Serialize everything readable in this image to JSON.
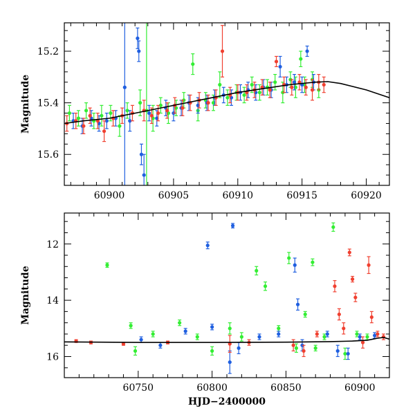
{
  "chart_data": [
    {
      "id": "top",
      "type": "scatter",
      "title": "",
      "xlabel": "",
      "ylabel": "Magnitude",
      "xlim": [
        60896.5,
        60921.8
      ],
      "ylim": [
        15.72,
        15.09
      ],
      "y_inverted": true,
      "xticks_major": [
        60900,
        60905,
        60910,
        60915,
        60920
      ],
      "xtick_labels": [
        "60900",
        "60905",
        "60910",
        "60915",
        "60920"
      ],
      "yticks_major": [
        15.2,
        15.4,
        15.6
      ],
      "ytick_labels": [
        "15.2",
        "15.4",
        "15.6"
      ],
      "grid": false,
      "legend": "none",
      "series_colors": {
        "green": "#33ee33",
        "blue": "#1f5fe0",
        "red": "#f04030",
        "model": "#000000"
      },
      "model_line": {
        "x": [
          60896.5,
          60898,
          60900,
          60902,
          60904,
          60906,
          60908,
          60910,
          60912,
          60914,
          60916,
          60917,
          60918,
          60920,
          60921.8
        ],
        "y": [
          15.48,
          15.47,
          15.46,
          15.44,
          15.42,
          15.4,
          15.38,
          15.36,
          15.345,
          15.33,
          15.32,
          15.318,
          15.325,
          15.35,
          15.38
        ]
      },
      "series": [
        {
          "color": "green",
          "points": [
            [
              60896.9,
              15.44,
              0.03
            ],
            [
              60897.6,
              15.46,
              0.03
            ],
            [
              60898.2,
              15.43,
              0.03
            ],
            [
              60898.8,
              15.47,
              0.03
            ],
            [
              60899.4,
              15.45,
              0.04
            ],
            [
              60900.1,
              15.44,
              0.03
            ],
            [
              60900.8,
              15.49,
              0.04
            ],
            [
              60901.4,
              15.43,
              0.03
            ],
            [
              60902.4,
              15.4,
              0.05
            ],
            [
              60902.9,
              15.43,
              0.45
            ],
            [
              60903.4,
              15.46,
              0.05
            ],
            [
              60904.0,
              15.41,
              0.03
            ],
            [
              60904.6,
              15.44,
              0.04
            ],
            [
              60905.2,
              15.42,
              0.03
            ],
            [
              60905.8,
              15.39,
              0.03
            ],
            [
              60906.5,
              15.25,
              0.04
            ],
            [
              60906.9,
              15.43,
              0.04
            ],
            [
              60907.5,
              15.39,
              0.03
            ],
            [
              60908.1,
              15.4,
              0.03
            ],
            [
              60908.6,
              15.33,
              0.05
            ],
            [
              60909.2,
              15.38,
              0.03
            ],
            [
              60909.9,
              15.36,
              0.03
            ],
            [
              60910.5,
              15.37,
              0.03
            ],
            [
              60911.1,
              15.33,
              0.03
            ],
            [
              60911.7,
              15.36,
              0.03
            ],
            [
              60912.3,
              15.34,
              0.03
            ],
            [
              60912.9,
              15.32,
              0.03
            ],
            [
              60913.5,
              15.36,
              0.04
            ],
            [
              60914.1,
              15.31,
              0.03
            ],
            [
              60914.5,
              15.34,
              0.04
            ],
            [
              60915.2,
              15.33,
              0.03
            ],
            [
              60915.8,
              15.31,
              0.03
            ],
            [
              60916.3,
              15.35,
              0.03
            ],
            [
              60914.9,
              15.23,
              0.03
            ]
          ]
        },
        {
          "color": "blue",
          "points": [
            [
              60897.2,
              15.47,
              0.03
            ],
            [
              60897.9,
              15.49,
              0.03
            ],
            [
              60898.6,
              15.46,
              0.03
            ],
            [
              60899.2,
              15.48,
              0.03
            ],
            [
              60899.8,
              15.47,
              0.03
            ],
            [
              60900.5,
              15.46,
              0.03
            ],
            [
              60901.2,
              15.34,
              0.5
            ],
            [
              60901.6,
              15.47,
              0.04
            ],
            [
              60902.2,
              15.15,
              0.04
            ],
            [
              60902.3,
              15.2,
              0.04
            ],
            [
              60902.5,
              15.6,
              0.04
            ],
            [
              60902.7,
              15.68,
              0.08
            ],
            [
              60903.1,
              15.44,
              0.03
            ],
            [
              60903.7,
              15.46,
              0.03
            ],
            [
              60904.4,
              15.42,
              0.03
            ],
            [
              60905.0,
              15.44,
              0.03
            ],
            [
              60905.6,
              15.42,
              0.03
            ],
            [
              60906.2,
              15.4,
              0.03
            ],
            [
              60906.9,
              15.41,
              0.03
            ],
            [
              60907.6,
              15.4,
              0.03
            ],
            [
              60908.2,
              15.38,
              0.03
            ],
            [
              60908.9,
              15.37,
              0.03
            ],
            [
              60909.5,
              15.38,
              0.03
            ],
            [
              60910.2,
              15.36,
              0.03
            ],
            [
              60910.8,
              15.35,
              0.03
            ],
            [
              60911.4,
              15.36,
              0.03
            ],
            [
              60912.0,
              15.34,
              0.03
            ],
            [
              60912.6,
              15.35,
              0.03
            ],
            [
              60913.3,
              15.26,
              0.04
            ],
            [
              60913.8,
              15.33,
              0.03
            ],
            [
              60914.4,
              15.32,
              0.03
            ],
            [
              60915.0,
              15.33,
              0.03
            ],
            [
              60915.4,
              15.2,
              0.02
            ],
            [
              60915.9,
              15.32,
              0.03
            ]
          ]
        },
        {
          "color": "red",
          "points": [
            [
              60896.7,
              15.48,
              0.03
            ],
            [
              60897.4,
              15.47,
              0.03
            ],
            [
              60898.0,
              15.49,
              0.03
            ],
            [
              60898.5,
              15.45,
              0.03
            ],
            [
              60899.1,
              15.47,
              0.03
            ],
            [
              60899.6,
              15.51,
              0.04
            ],
            [
              60900.3,
              15.46,
              0.03
            ],
            [
              60901.0,
              15.45,
              0.03
            ],
            [
              60901.8,
              15.44,
              0.03
            ],
            [
              60902.7,
              15.43,
              0.04
            ],
            [
              60903.3,
              15.45,
              0.03
            ],
            [
              60903.8,
              15.44,
              0.03
            ],
            [
              60904.5,
              15.43,
              0.03
            ],
            [
              60905.1,
              15.41,
              0.03
            ],
            [
              60905.7,
              15.42,
              0.03
            ],
            [
              60906.3,
              15.4,
              0.03
            ],
            [
              60907.0,
              15.39,
              0.03
            ],
            [
              60907.7,
              15.4,
              0.03
            ],
            [
              60908.3,
              15.38,
              0.03
            ],
            [
              60908.8,
              15.2,
              0.1
            ],
            [
              60909.4,
              15.37,
              0.03
            ],
            [
              60910.0,
              15.36,
              0.03
            ],
            [
              60910.7,
              15.36,
              0.03
            ],
            [
              60911.3,
              15.35,
              0.03
            ],
            [
              60911.9,
              15.34,
              0.03
            ],
            [
              60912.5,
              15.35,
              0.03
            ],
            [
              60913.0,
              15.24,
              0.02
            ],
            [
              60913.6,
              15.33,
              0.03
            ],
            [
              60914.2,
              15.34,
              0.03
            ],
            [
              60914.8,
              15.32,
              0.03
            ],
            [
              60915.3,
              15.34,
              0.03
            ],
            [
              60915.8,
              15.35,
              0.04
            ],
            [
              60916.3,
              15.32,
              0.03
            ],
            [
              60916.7,
              15.33,
              0.03
            ]
          ]
        }
      ]
    },
    {
      "id": "bottom",
      "type": "scatter",
      "title": "",
      "xlabel": "HJD−2400000",
      "ylabel": "Magnitude",
      "xlim": [
        60700,
        60920
      ],
      "ylim": [
        16.75,
        10.9
      ],
      "y_inverted": true,
      "xticks_major": [
        60750,
        60800,
        60850,
        60900
      ],
      "xtick_labels": [
        "60750",
        "60800",
        "60850",
        "60900"
      ],
      "yticks_major": [
        12,
        14,
        16
      ],
      "ytick_labels": [
        "12",
        "14",
        "16"
      ],
      "grid": false,
      "legend": "none",
      "model_line": {
        "x": [
          60700,
          60750,
          60800,
          60850,
          60880,
          60895,
          60905,
          60912,
          60916,
          60920
        ],
        "y": [
          15.48,
          15.5,
          15.5,
          15.49,
          15.47,
          15.45,
          15.42,
          15.35,
          15.32,
          15.38
        ]
      },
      "series": [
        {
          "color": "green",
          "points": [
            [
              60729,
              12.75,
              0.08
            ],
            [
              60745,
              14.9,
              0.1
            ],
            [
              60748,
              15.8,
              0.15
            ],
            [
              60760,
              15.2,
              0.1
            ],
            [
              60778,
              14.8,
              0.1
            ],
            [
              60790,
              15.3,
              0.1
            ],
            [
              60800,
              15.8,
              0.15
            ],
            [
              60812,
              15.0,
              0.2
            ],
            [
              60820,
              15.3,
              0.15
            ],
            [
              60830,
              12.95,
              0.15
            ],
            [
              60836,
              13.5,
              0.15
            ],
            [
              60845,
              15.0,
              0.1
            ],
            [
              60852,
              12.5,
              0.2
            ],
            [
              60857,
              15.7,
              0.15
            ],
            [
              60863,
              14.5,
              0.1
            ],
            [
              60868,
              12.65,
              0.12
            ],
            [
              60870,
              15.7,
              0.1
            ],
            [
              60876,
              15.3,
              0.1
            ],
            [
              60882,
              11.4,
              0.15
            ],
            [
              60890,
              15.9,
              0.2
            ],
            [
              60898,
              15.2,
              0.1
            ],
            [
              60905,
              15.3,
              0.1
            ]
          ]
        },
        {
          "color": "blue",
          "points": [
            [
              60752,
              15.4,
              0.1
            ],
            [
              60765,
              15.6,
              0.1
            ],
            [
              60782,
              15.1,
              0.1
            ],
            [
              60797,
              12.05,
              0.12
            ],
            [
              60800,
              14.95,
              0.1
            ],
            [
              60812,
              16.2,
              0.4
            ],
            [
              60814,
              11.35,
              0.08
            ],
            [
              60818,
              15.7,
              0.2
            ],
            [
              60832,
              15.3,
              0.1
            ],
            [
              60845,
              15.2,
              0.1
            ],
            [
              60856,
              12.75,
              0.25
            ],
            [
              60858,
              14.15,
              0.2
            ],
            [
              60861,
              15.6,
              0.2
            ],
            [
              60878,
              15.2,
              0.1
            ],
            [
              60885,
              15.8,
              0.2
            ],
            [
              60892,
              15.9,
              0.2
            ],
            [
              60900,
              15.3,
              0.1
            ],
            [
              60910,
              15.25,
              0.1
            ]
          ]
        },
        {
          "color": "red",
          "points": [
            [
              60708,
              15.45,
              0.05
            ],
            [
              60718,
              15.5,
              0.05
            ],
            [
              60740,
              15.55,
              0.05
            ],
            [
              60770,
              15.5,
              0.05
            ],
            [
              60812,
              15.55,
              0.3
            ],
            [
              60825,
              15.5,
              0.1
            ],
            [
              60855,
              15.6,
              0.2
            ],
            [
              60862,
              15.8,
              0.2
            ],
            [
              60871,
              15.2,
              0.1
            ],
            [
              60883,
              13.5,
              0.2
            ],
            [
              60886,
              14.5,
              0.2
            ],
            [
              60889,
              15.0,
              0.2
            ],
            [
              60893,
              12.3,
              0.12
            ],
            [
              60895,
              13.25,
              0.1
            ],
            [
              60897,
              13.9,
              0.15
            ],
            [
              60902,
              15.5,
              0.2
            ],
            [
              60906,
              12.75,
              0.3
            ],
            [
              60908,
              14.6,
              0.2
            ],
            [
              60912,
              15.2,
              0.1
            ],
            [
              60916,
              15.3,
              0.1
            ]
          ]
        }
      ]
    }
  ]
}
